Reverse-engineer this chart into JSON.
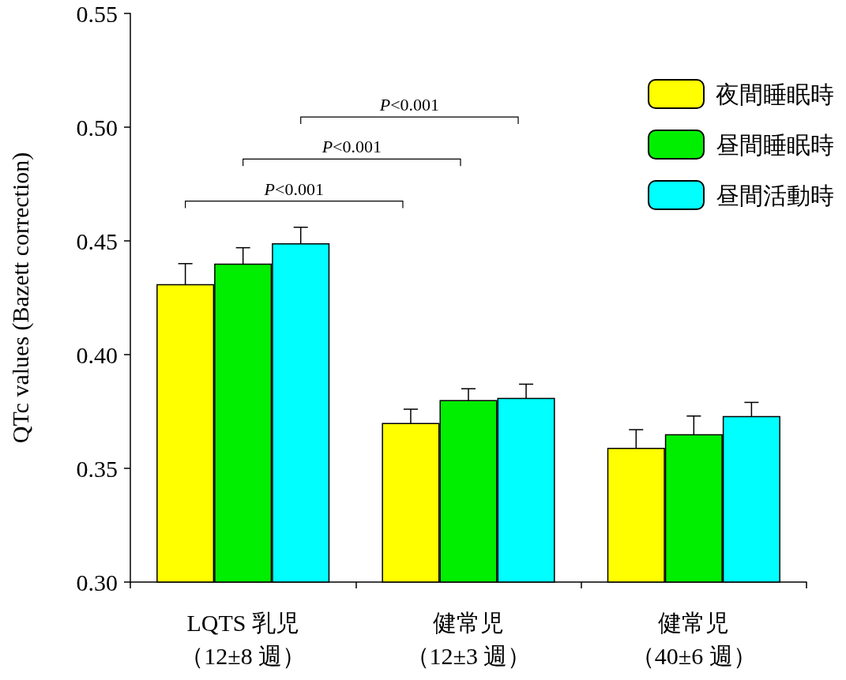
{
  "chart_data": {
    "type": "bar",
    "ylabel": "QTc values (Bazett correction)",
    "categories": [
      "LQTS 乳児（12±8 週）",
      "健常児（12±3 週）",
      "健常児（40±6 週）"
    ],
    "series": [
      {
        "name": "夜間睡眠時",
        "color": "#ffff00",
        "values": [
          0.431,
          0.37,
          0.359
        ],
        "errors": [
          0.009,
          0.006,
          0.008
        ]
      },
      {
        "name": "昼間睡眠時",
        "color": "#00ee00",
        "values": [
          0.44,
          0.38,
          0.365
        ],
        "errors": [
          0.007,
          0.005,
          0.008
        ]
      },
      {
        "name": "昼間活動時",
        "color": "#00ffff",
        "values": [
          0.449,
          0.381,
          0.373
        ],
        "errors": [
          0.007,
          0.006,
          0.006
        ]
      }
    ],
    "ylim": [
      0.3,
      0.55
    ],
    "yticks": [
      {
        "value": 0.3,
        "label": "0.30"
      },
      {
        "value": 0.35,
        "label": "0.35"
      },
      {
        "value": 0.4,
        "label": "0.40"
      },
      {
        "value": 0.45,
        "label": "0.45"
      },
      {
        "value": 0.5,
        "label": "0.50"
      },
      {
        "value": 0.55,
        "label": "0.55"
      }
    ],
    "annotations": [
      "P<0.001",
      "P<0.001",
      "P<0.001"
    ],
    "legend": "top right",
    "grid": false
  }
}
